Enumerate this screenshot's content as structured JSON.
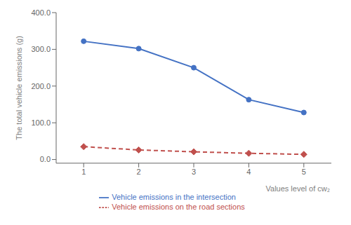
{
  "chart_data": {
    "type": "line",
    "x": [
      1,
      2,
      3,
      4,
      5
    ],
    "xlabel": "Values level of cw₂",
    "ylabel": "The total vehicle emissions (g)",
    "series": [
      {
        "name": "Vehicle emissions in the intersection",
        "color": "#4472C4",
        "marker": "circle",
        "line_style": "solid",
        "values": [
          322,
          302,
          250,
          163,
          128
        ]
      },
      {
        "name": "Vehicle emissions on the road sections",
        "color": "#C0504D",
        "marker": "diamond",
        "line_style": "dashed",
        "values": [
          35,
          26,
          21,
          17,
          14
        ]
      }
    ],
    "xlim": [
      0.5,
      5.5
    ],
    "xticks": [
      1,
      2,
      3,
      4,
      5
    ],
    "ylim": [
      -10,
      400
    ],
    "yticks": [
      {
        "value": 0,
        "label": "0.0"
      },
      {
        "value": 100,
        "label": "100.0"
      },
      {
        "value": 200,
        "label": "200.0"
      },
      {
        "value": 300,
        "label": "300.0"
      },
      {
        "value": 400,
        "label": "400.0"
      }
    ],
    "grid": false,
    "legend": "bottom"
  }
}
